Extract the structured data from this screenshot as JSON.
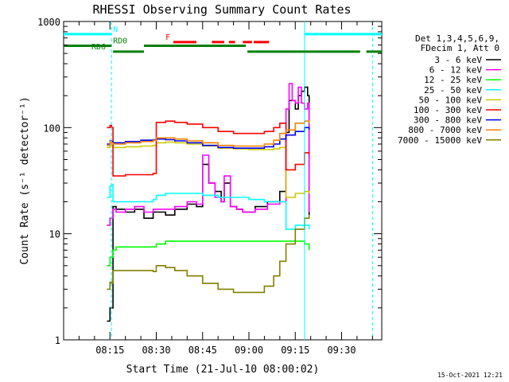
{
  "chart_data": {
    "type": "line",
    "title": "RHESSI Observing Summary Count Rates",
    "xlabel": "Start Time (21-Jul-10 08:00:02)",
    "ylabel": "Count Rate (s⁻¹ detector⁻¹)",
    "yscale": "log",
    "ylim": [
      1,
      1000
    ],
    "xlim_minutes": [
      0,
      103
    ],
    "x_ticks": [
      {
        "label": "08:15",
        "min": 15
      },
      {
        "label": "08:30",
        "min": 30
      },
      {
        "label": "08:45",
        "min": 45
      },
      {
        "label": "09:00",
        "min": 60
      },
      {
        "label": "09:15",
        "min": 75
      },
      {
        "label": "09:30",
        "min": 90
      }
    ],
    "y_ticks": [
      {
        "label": "1",
        "value": 1
      },
      {
        "label": "10",
        "value": 10
      },
      {
        "label": "100",
        "value": 100
      },
      {
        "label": "1000",
        "value": 1000
      }
    ],
    "legend_header": [
      "Det 1,3,4,5,6,9,",
      "FDecim 1, Att 0"
    ],
    "legend_placement": "right",
    "footer_date": "15-Oct-2021 12:21",
    "series": [
      {
        "name": "3 - 6 keV",
        "color": "#000000",
        "x": [
          14,
          15,
          16,
          17,
          20,
          23,
          26,
          29,
          33,
          36,
          40,
          43,
          45,
          47,
          49,
          51,
          52,
          54,
          56,
          58,
          62,
          66,
          70,
          72,
          73,
          75,
          76,
          77,
          78,
          79,
          79.5
        ],
        "y": [
          1.5,
          2,
          18,
          17,
          16,
          17,
          14,
          16,
          15,
          17,
          19,
          18,
          45,
          30,
          25,
          20,
          30,
          18,
          17,
          16,
          18,
          20,
          25,
          90,
          180,
          150,
          200,
          220,
          240,
          200,
          15
        ]
      },
      {
        "name": "6 - 12 keV",
        "color": "#ff00ff",
        "x": [
          14,
          15,
          16,
          17,
          20,
          23,
          26,
          29,
          33,
          36,
          40,
          43,
          45,
          47,
          49,
          51,
          52,
          54,
          56,
          58,
          62,
          66,
          70,
          72,
          73,
          74,
          75,
          76,
          77,
          78,
          79,
          79.5
        ],
        "y": [
          12,
          14,
          17,
          16,
          17,
          18,
          16,
          17,
          17,
          18,
          20,
          19,
          55,
          30,
          22,
          20,
          35,
          18,
          17,
          16,
          17,
          19,
          20,
          150,
          260,
          180,
          170,
          240,
          170,
          150,
          170,
          16
        ]
      },
      {
        "name": "12 - 25 keV",
        "color": "#00ff00",
        "x": [
          14,
          15,
          16,
          17,
          20,
          23,
          26,
          29,
          30,
          33,
          36,
          40,
          45,
          50,
          55,
          60,
          65,
          70,
          72,
          75,
          78,
          79.5
        ],
        "y": [
          5,
          6,
          7,
          7.5,
          7.5,
          7.5,
          7.5,
          7.5,
          8,
          8.5,
          8.5,
          8.5,
          8.5,
          8.5,
          8.5,
          8.5,
          8.5,
          8.5,
          8.5,
          8.5,
          8,
          7
        ]
      },
      {
        "name": "25 - 50 keV",
        "color": "#00ffff",
        "x": [
          14,
          15,
          15.5,
          16,
          20,
          25,
          29,
          30,
          33,
          36,
          40,
          45,
          50,
          55,
          60,
          65,
          68,
          70,
          72,
          75,
          78,
          79.5
        ],
        "y": [
          22,
          28,
          29,
          20,
          20,
          20,
          21,
          23,
          24,
          24,
          24,
          23,
          22,
          22,
          21,
          20,
          20,
          20,
          11,
          12,
          12,
          11
        ]
      },
      {
        "name": "50 - 100 keV",
        "color": "#cccc00",
        "x": [
          14,
          15,
          15.5,
          16,
          20,
          25,
          29,
          30,
          33,
          36,
          40,
          45,
          50,
          55,
          60,
          65,
          68,
          70,
          72,
          75,
          78,
          79.5
        ],
        "y": [
          65,
          70,
          68,
          65,
          66,
          67,
          68,
          72,
          73,
          72,
          70,
          67,
          64,
          63,
          62,
          62,
          63,
          65,
          22,
          24,
          25,
          24
        ]
      },
      {
        "name": "100 - 300 keV",
        "color": "#ff0000",
        "x": [
          14,
          15,
          15.5,
          16,
          20,
          25,
          29,
          30,
          33,
          36,
          40,
          45,
          50,
          55,
          60,
          65,
          68,
          70,
          72,
          75,
          78,
          79.5
        ],
        "y": [
          100,
          105,
          100,
          35,
          36,
          36,
          37,
          112,
          115,
          112,
          108,
          100,
          92,
          88,
          88,
          92,
          100,
          110,
          40,
          45,
          58,
          56
        ]
      },
      {
        "name": "300 - 800 keV",
        "color": "#0000ff",
        "x": [
          14,
          15,
          15.5,
          16,
          20,
          25,
          29,
          30,
          33,
          36,
          40,
          45,
          50,
          55,
          60,
          65,
          68,
          70,
          72,
          75,
          78,
          79.5
        ],
        "y": [
          70,
          75,
          74,
          72,
          74,
          76,
          77,
          78,
          77,
          75,
          72,
          68,
          65,
          64,
          64,
          66,
          70,
          78,
          85,
          92,
          100,
          95
        ]
      },
      {
        "name": "800 - 7000 keV",
        "color": "#ff8000",
        "x": [
          14,
          15,
          15.5,
          16,
          20,
          25,
          29,
          30,
          33,
          36,
          40,
          45,
          50,
          55,
          60,
          65,
          68,
          70,
          72,
          75,
          78,
          79.5
        ],
        "y": [
          68,
          74,
          72,
          70,
          72,
          74,
          76,
          80,
          80,
          78,
          75,
          72,
          68,
          67,
          67,
          70,
          76,
          88,
          95,
          110,
          115,
          110
        ]
      },
      {
        "name": "7000 - 15000 keV",
        "color": "#808000",
        "x": [
          14,
          15,
          15.5,
          16,
          20,
          25,
          29,
          30,
          33,
          36,
          40,
          45,
          50,
          55,
          60,
          65,
          68,
          70,
          72,
          75,
          78,
          79.5
        ],
        "y": [
          3,
          3.5,
          3.4,
          4.5,
          4.5,
          4.5,
          4.4,
          5,
          4.8,
          4.5,
          4,
          3.4,
          3,
          2.8,
          2.8,
          3.2,
          4,
          5.5,
          8,
          11,
          14,
          15
        ]
      }
    ],
    "state_bars": [
      {
        "label": "N",
        "color": "#00ffff",
        "level": 760,
        "segments": [
          [
            0,
            15.5
          ],
          [
            78,
            103
          ]
        ],
        "label_at_min": 16
      },
      {
        "label": "F",
        "color": "#ff0000",
        "level": 640,
        "segments": [
          [
            35.5,
            43
          ],
          [
            48,
            52
          ],
          [
            53.5,
            55.5
          ],
          [
            58,
            61
          ],
          [
            61.5,
            66.5
          ]
        ],
        "label_at_min": 33
      },
      {
        "label": "RD0",
        "color": "#008000",
        "level": 590,
        "segments": [
          [
            0,
            15.5
          ],
          [
            26,
            59
          ]
        ],
        "label_at_min": 16
      },
      {
        "label": "RD6",
        "color": "#008000",
        "level": 520,
        "segments": [
          [
            16,
            26
          ],
          [
            59.5,
            96
          ],
          [
            98,
            103
          ]
        ],
        "label_at_min": 9
      }
    ],
    "vlines": [
      {
        "min": 15.5,
        "color": "#00ffff",
        "dashed": true
      },
      {
        "min": 78,
        "color": "#00ffff",
        "dashed": false
      },
      {
        "min": 100,
        "color": "#00ffff",
        "dashed": true
      }
    ]
  }
}
